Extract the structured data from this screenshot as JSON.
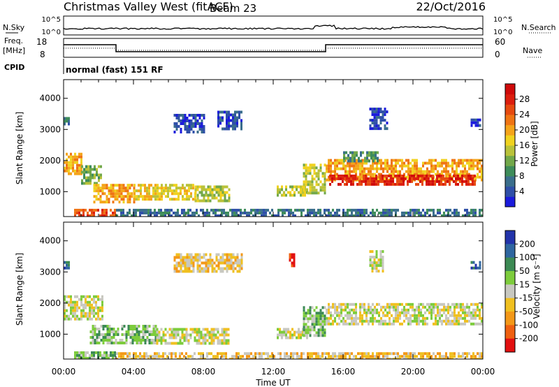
{
  "header": {
    "station": "Christmas Valley West (fitACF)",
    "beam": "Beam 23",
    "date": "22/Oct/2016"
  },
  "info_rows": {
    "nsky_label": "N.Sky",
    "nsearch_label": "N.Search",
    "nsky_ticks": [
      "10^5",
      "10^0"
    ],
    "nsearch_ticks": [
      "10^5",
      "10^0"
    ],
    "freq_label_line1": "Freq.",
    "freq_label_line2": "[MHz]",
    "freq_ticks": [
      "18",
      "8"
    ],
    "nave_label": "Nave",
    "nave_ticks": [
      "60",
      "0"
    ],
    "cpid_label": "CPID",
    "cpid_text": "normal (fast) 151 RF"
  },
  "chart_data": [
    {
      "type": "heatmap",
      "name": "power",
      "xlabel": "Time UT",
      "ylabel": "Slant Range [km]",
      "x_ticks": [
        "00:00",
        "04:00",
        "08:00",
        "12:00",
        "16:00",
        "20:00",
        "00:00"
      ],
      "xlim_hours": [
        0,
        24
      ],
      "y_ticks": [
        1000,
        2000,
        3000,
        4000
      ],
      "ylim": [
        200,
        4600
      ],
      "colorbar": {
        "label": "Power [dB]",
        "tick_labels": [
          "4",
          "8",
          "12",
          "16",
          "20",
          "24",
          "28"
        ],
        "colors": [
          "#1b1bdc",
          "#2f4fa8",
          "#3a6e8c",
          "#3e8c5a",
          "#72a84a",
          "#b9c23a",
          "#f0d21f",
          "#f4a41a",
          "#ef7414",
          "#e64a10",
          "#dc1e0e",
          "#cf0a0a"
        ]
      },
      "regions": [
        {
          "t0": 0.0,
          "t1": 0.3,
          "r0": 3150,
          "r1": 3400,
          "level": 2
        },
        {
          "t0": 0.0,
          "t1": 1.0,
          "r0": 1550,
          "r1": 2250,
          "level": 7
        },
        {
          "t0": 1.0,
          "t1": 2.1,
          "r0": 1300,
          "r1": 1850,
          "level": 4
        },
        {
          "t0": 0.6,
          "t1": 3.0,
          "r0": 200,
          "r1": 450,
          "level": 9
        },
        {
          "t0": 1.7,
          "t1": 4.0,
          "r0": 700,
          "r1": 1250,
          "level": 7
        },
        {
          "t0": 4.0,
          "t1": 7.5,
          "r0": 800,
          "r1": 1250,
          "level": 6
        },
        {
          "t0": 7.5,
          "t1": 9.5,
          "r0": 750,
          "r1": 1200,
          "level": 5
        },
        {
          "t0": 6.3,
          "t1": 8.0,
          "r0": 2900,
          "r1": 3500,
          "level": 1
        },
        {
          "t0": 8.8,
          "t1": 10.2,
          "r0": 3000,
          "r1": 3600,
          "level": 1
        },
        {
          "t0": 3.0,
          "t1": 24.0,
          "r0": 200,
          "r1": 450,
          "level": 2
        },
        {
          "t0": 12.2,
          "t1": 13.9,
          "r0": 900,
          "r1": 1200,
          "level": 5
        },
        {
          "t0": 13.7,
          "t1": 15.0,
          "r0": 1000,
          "r1": 1900,
          "level": 5
        },
        {
          "t0": 15.0,
          "t1": 24.0,
          "r0": 1350,
          "r1": 2050,
          "level": 7
        },
        {
          "t0": 15.2,
          "t1": 23.6,
          "r0": 1250,
          "r1": 1550,
          "level": 10
        },
        {
          "t0": 16.0,
          "t1": 18.0,
          "r0": 2000,
          "r1": 2300,
          "level": 3
        },
        {
          "t0": 17.5,
          "t1": 18.5,
          "r0": 3000,
          "r1": 3700,
          "level": 1
        },
        {
          "t0": 23.3,
          "t1": 23.9,
          "r0": 3100,
          "r1": 3350,
          "level": 1
        }
      ]
    },
    {
      "type": "heatmap",
      "name": "velocity",
      "xlabel": "Time UT",
      "ylabel": "Slant Range [km]",
      "x_ticks": [
        "00:00",
        "04:00",
        "08:00",
        "12:00",
        "16:00",
        "20:00",
        "00:00"
      ],
      "xlim_hours": [
        0,
        24
      ],
      "y_ticks": [
        1000,
        2000,
        3000,
        4000
      ],
      "ylim": [
        200,
        4600
      ],
      "colorbar": {
        "label": "Velocity [m s⁻¹]",
        "tick_labels": [
          "200",
          "100",
          "50",
          "15",
          "-15",
          "-50",
          "-100",
          "-200"
        ],
        "colors": [
          "#2233aa",
          "#2f66a0",
          "#3c8a54",
          "#7dcc3c",
          "#c8c8c0",
          "#f0c020",
          "#f39818",
          "#ef6010",
          "#e21010"
        ]
      },
      "regions": [
        {
          "t0": 0.0,
          "t1": 2.2,
          "r0": 1500,
          "r1": 2250,
          "level": 4
        },
        {
          "t0": 0.0,
          "t1": 0.3,
          "r0": 3150,
          "r1": 3350,
          "level": 1
        },
        {
          "t0": 1.5,
          "t1": 5.3,
          "r0": 700,
          "r1": 1300,
          "level": 3
        },
        {
          "t0": 5.3,
          "t1": 9.5,
          "r0": 750,
          "r1": 1200,
          "level": 4
        },
        {
          "t0": 0.6,
          "t1": 3.0,
          "r0": 200,
          "r1": 450,
          "level": 3
        },
        {
          "t0": 3.0,
          "t1": 24.0,
          "r0": 200,
          "r1": 420,
          "level": 5
        },
        {
          "t0": 6.3,
          "t1": 10.2,
          "r0": 3000,
          "r1": 3600,
          "level": 5
        },
        {
          "t0": 12.2,
          "t1": 13.9,
          "r0": 900,
          "r1": 1200,
          "level": 4
        },
        {
          "t0": 13.7,
          "t1": 15.0,
          "r0": 1000,
          "r1": 1900,
          "level": 3
        },
        {
          "t0": 12.9,
          "t1": 13.2,
          "r0": 3200,
          "r1": 3600,
          "level": 8
        },
        {
          "t0": 15.0,
          "t1": 24.0,
          "r0": 1300,
          "r1": 2000,
          "level": 4
        },
        {
          "t0": 17.5,
          "t1": 18.3,
          "r0": 3000,
          "r1": 3700,
          "level": 4
        },
        {
          "t0": 23.3,
          "t1": 23.9,
          "r0": 3100,
          "r1": 3350,
          "level": 1
        }
      ]
    }
  ]
}
